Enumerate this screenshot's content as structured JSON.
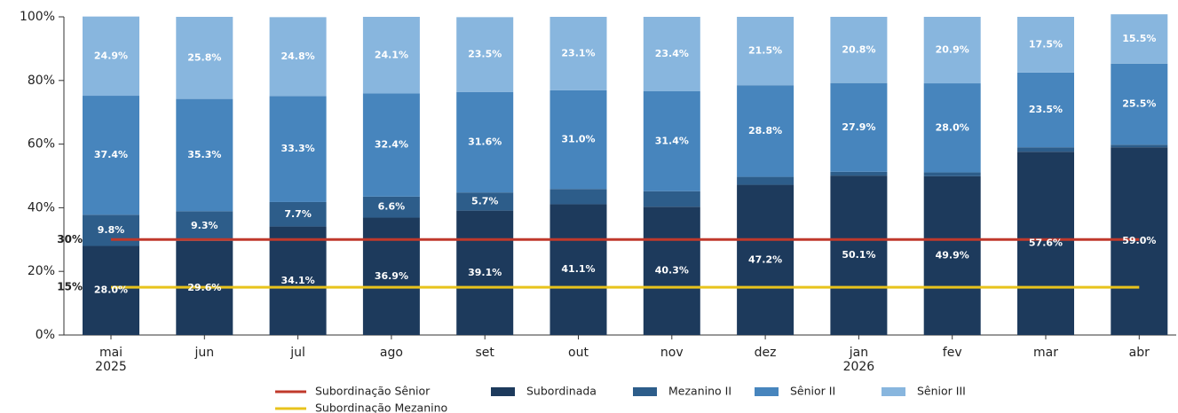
{
  "chart_data": {
    "type": "stacked-bar",
    "categories": [
      "mai",
      "jun",
      "jul",
      "ago",
      "set",
      "out",
      "nov",
      "dez",
      "jan",
      "fev",
      "mar",
      "abr"
    ],
    "year_labels": [
      "2025",
      null,
      null,
      null,
      null,
      null,
      null,
      null,
      "2026",
      null,
      null,
      null
    ],
    "ylim": [
      0,
      100
    ],
    "yticks": [
      {
        "value": 0,
        "label": "0%"
      },
      {
        "value": 20,
        "label": "20%"
      },
      {
        "value": 40,
        "label": "40%"
      },
      {
        "value": 60,
        "label": "60%"
      },
      {
        "value": 80,
        "label": "80%"
      },
      {
        "value": 100,
        "label": "100%"
      }
    ],
    "series": [
      {
        "name": "Subordinada",
        "color": "#1d3a5c",
        "values": [
          28.0,
          29.6,
          34.1,
          36.9,
          39.1,
          41.1,
          40.3,
          47.2,
          50.1,
          49.9,
          57.6,
          59.0
        ],
        "value_labels": [
          "28.0%",
          "29.6%",
          "34.1%",
          "36.9%",
          "39.1%",
          "41.1%",
          "40.3%",
          "47.2%",
          "50.1%",
          "49.9%",
          "57.6%",
          "59.0%"
        ]
      },
      {
        "name": "Mezanino II",
        "color": "#2d5d8a",
        "values": [
          9.8,
          9.3,
          7.7,
          6.6,
          5.7,
          4.8,
          4.9,
          2.5,
          1.2,
          1.2,
          1.4,
          0.8
        ],
        "value_labels": [
          "9.8%",
          "9.3%",
          "7.7%",
          "6.6%",
          "5.7%",
          null,
          null,
          null,
          null,
          null,
          null,
          null
        ]
      },
      {
        "name": "Sênior II",
        "color": "#4785bd",
        "values": [
          37.4,
          35.3,
          33.3,
          32.4,
          31.6,
          31.0,
          31.4,
          28.8,
          27.9,
          28.0,
          23.5,
          25.5
        ],
        "value_labels": [
          "37.4%",
          "35.3%",
          "33.3%",
          "32.4%",
          "31.6%",
          "31.0%",
          "31.4%",
          "28.8%",
          "27.9%",
          "28.0%",
          "23.5%",
          "25.5%"
        ]
      },
      {
        "name": "Sênior III",
        "color": "#88b6de",
        "values": [
          24.9,
          25.8,
          24.8,
          24.1,
          23.5,
          23.1,
          23.4,
          21.5,
          20.8,
          20.9,
          17.5,
          15.5
        ],
        "value_labels": [
          "24.9%",
          "25.8%",
          "24.8%",
          "24.1%",
          "23.5%",
          "23.1%",
          "23.4%",
          "21.5%",
          "20.8%",
          "20.9%",
          "17.5%",
          "15.5%"
        ]
      }
    ],
    "reference_lines": [
      {
        "name": "Subordinação Sênior",
        "color": "#c0392b",
        "value": 30,
        "label": "30%"
      },
      {
        "name": "Subordinação Mezanino",
        "color": "#e8c31c",
        "value": 15,
        "label": "15%"
      }
    ]
  }
}
